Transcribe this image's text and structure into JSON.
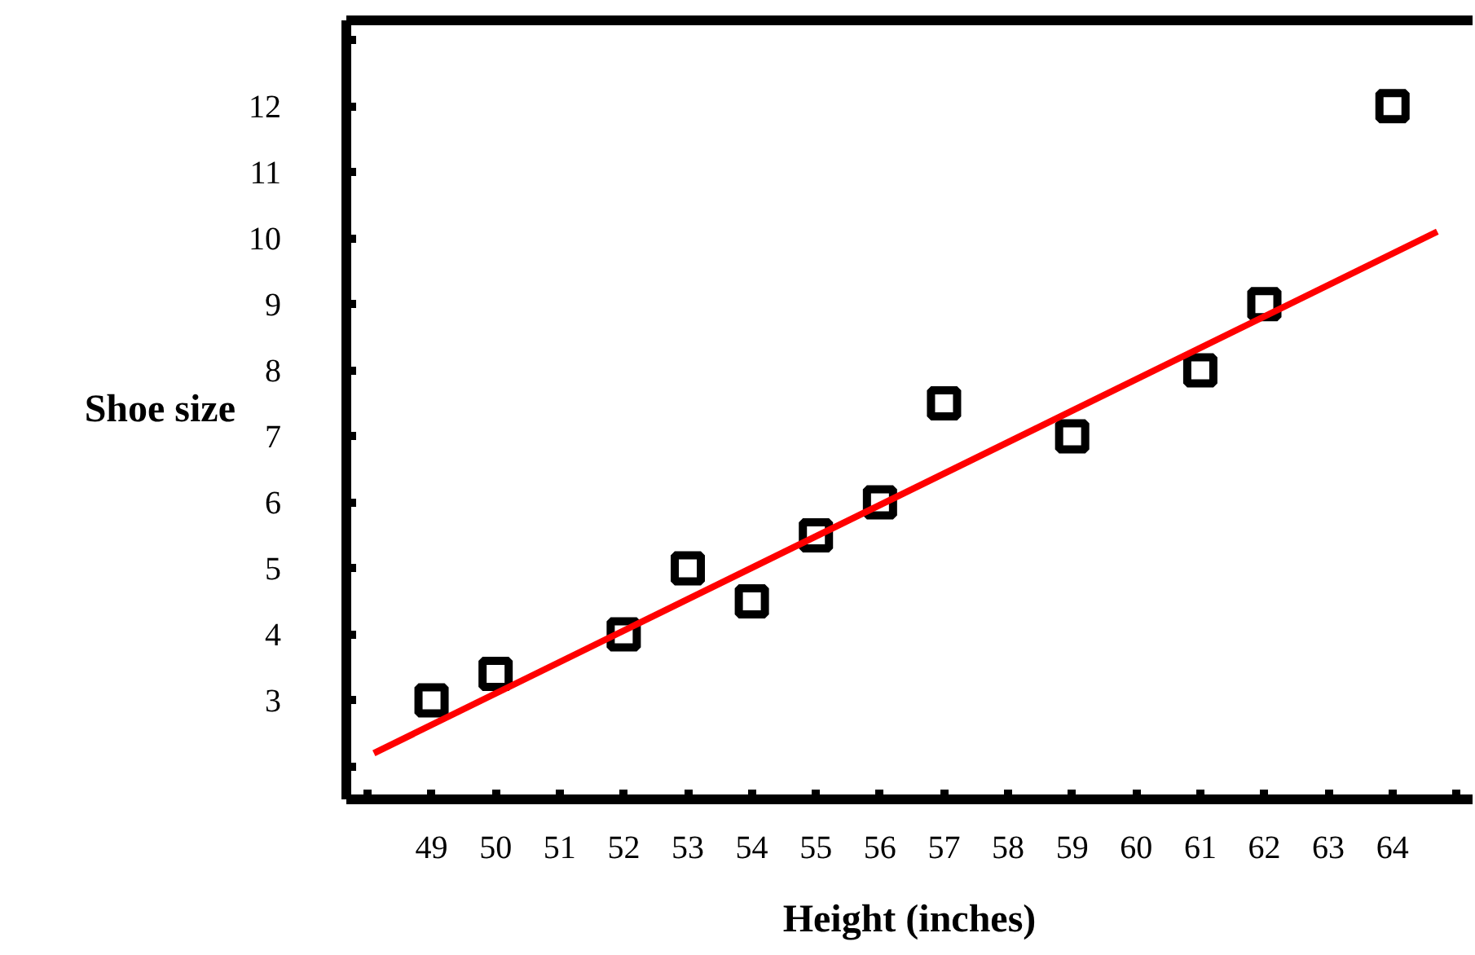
{
  "chart_data": {
    "type": "scatter",
    "xlabel": "Height (inches)",
    "ylabel": "Shoe size",
    "xlim": [
      47.67,
      65.25
    ],
    "ylim": [
      1.5,
      13.3
    ],
    "xticks": [
      {
        "value": 48,
        "label": null
      },
      49,
      50,
      51,
      52,
      53,
      54,
      55,
      56,
      57,
      58,
      59,
      60,
      61,
      62,
      63,
      64,
      {
        "value": 65,
        "label": null
      }
    ],
    "yticks": [
      {
        "value": 2,
        "label": null
      },
      3,
      4,
      5,
      6,
      7,
      8,
      9,
      10,
      11,
      12,
      {
        "value": 13,
        "label": null
      }
    ],
    "grid": false,
    "series": [
      {
        "marker": "square",
        "color": "#000000",
        "x": [
          49,
          50,
          52,
          53,
          54,
          55,
          56,
          57,
          59,
          61,
          62,
          64
        ],
        "values": [
          3,
          3.4,
          4,
          5,
          4.5,
          5.5,
          6,
          7.5,
          7,
          8,
          9,
          12
        ]
      },
      {
        "type": "line",
        "marker": "none",
        "color": "#ff0000",
        "x": [
          48.1,
          64.7
        ],
        "values": [
          2.2,
          10.1
        ]
      }
    ]
  }
}
